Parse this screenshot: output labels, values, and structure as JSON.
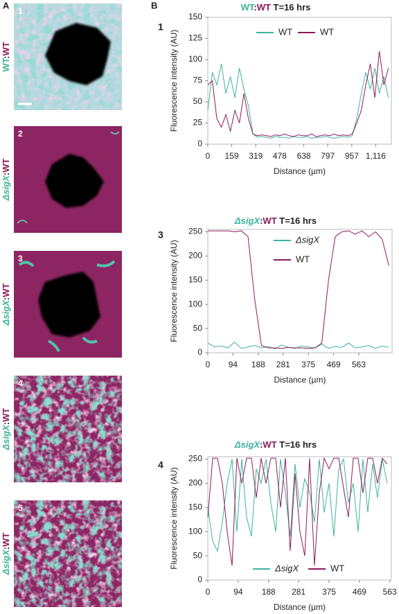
{
  "figure": {
    "panel_a_label": "A",
    "panel_b_label": "B",
    "images": [
      {
        "number": "1",
        "label": [
          {
            "text": "WT",
            "color": "#3bb39a"
          },
          {
            "text": ":",
            "color": "#222222"
          },
          {
            "text": "WT",
            "color": "#8b1a5a"
          }
        ]
      },
      {
        "number": "2",
        "label": [
          {
            "text": "ΔsigX",
            "color": "#3bb39a",
            "italic": true
          },
          {
            "text": ":",
            "color": "#222222"
          },
          {
            "text": "WT",
            "color": "#8b1a5a"
          }
        ]
      },
      {
        "number": "3",
        "label": [
          {
            "text": "ΔsigX",
            "color": "#3bb39a",
            "italic": true
          },
          {
            "text": ":",
            "color": "#222222"
          },
          {
            "text": "WT",
            "color": "#8b1a5a"
          }
        ]
      },
      {
        "number": "4",
        "label": [
          {
            "text": "ΔsigX",
            "color": "#3bb39a",
            "italic": true
          },
          {
            "text": ":",
            "color": "#222222"
          },
          {
            "text": "WT",
            "color": "#8b1a5a"
          }
        ]
      },
      {
        "number": "5",
        "label": [
          {
            "text": "ΔsigX",
            "color": "#3bb39a",
            "italic": true
          },
          {
            "text": ":",
            "color": "#222222"
          },
          {
            "text": "WT",
            "color": "#8b1a5a"
          }
        ]
      }
    ]
  },
  "chart_data": [
    {
      "type": "line",
      "panel_label": "1",
      "title": [
        {
          "text": "WT",
          "color": "#3bb39a"
        },
        {
          "text": ":",
          "color": "#222222"
        },
        {
          "text": "WT",
          "color": "#8b1a5a"
        },
        {
          "text": " T=16 hrs",
          "color": "#222222"
        }
      ],
      "x_label": "Distance (µm)",
      "y_label": "Fluorescence intensity (AU)",
      "legend": "top",
      "xlim": [
        0,
        1220
      ],
      "ylim": [
        0,
        150
      ],
      "xticks": [
        0,
        159,
        319,
        478,
        638,
        797,
        957,
        {
          "value": 1116,
          "label": "1,116"
        }
      ],
      "yticks": [
        0,
        25,
        50,
        75,
        100,
        125,
        150
      ],
      "x": [
        0,
        30,
        60,
        90,
        120,
        150,
        180,
        210,
        240,
        270,
        300,
        330,
        360,
        390,
        420,
        450,
        480,
        510,
        540,
        570,
        600,
        630,
        660,
        690,
        720,
        750,
        780,
        810,
        840,
        870,
        900,
        930,
        960,
        990,
        1020,
        1050,
        1080,
        1110,
        1140,
        1170,
        1200
      ],
      "series": [
        {
          "name": "WT",
          "color": "#3bb39a",
          "values": [
            40,
            85,
            70,
            95,
            60,
            80,
            55,
            90,
            65,
            45,
            12,
            8,
            9,
            8,
            7,
            9,
            8,
            8,
            7,
            9,
            8,
            8,
            9,
            7,
            8,
            8,
            9,
            8,
            7,
            8,
            9,
            8,
            10,
            30,
            60,
            85,
            65,
            90,
            60,
            80,
            55
          ]
        },
        {
          "name": "WT",
          "color": "#8b1a5a",
          "values": [
            70,
            75,
            30,
            20,
            35,
            15,
            40,
            25,
            60,
            30,
            12,
            10,
            11,
            10,
            9,
            11,
            10,
            12,
            10,
            9,
            11,
            10,
            10,
            12,
            9,
            10,
            11,
            10,
            12,
            10,
            11,
            10,
            12,
            25,
            40,
            70,
            95,
            55,
            110,
            70,
            90
          ]
        }
      ]
    },
    {
      "type": "line",
      "panel_label": "3",
      "title": [
        {
          "text": "ΔsigX",
          "color": "#3bb39a",
          "italic": true
        },
        {
          "text": ":",
          "color": "#222222"
        },
        {
          "text": "WT",
          "color": "#8b1a5a"
        },
        {
          "text": " T=16 hrs",
          "color": "#222222"
        }
      ],
      "x_label": "Distance (µm)",
      "y_label": "Fluorescence intensity (AU)",
      "legend": "top-stacked",
      "xlim": [
        0,
        687
      ],
      "ylim": [
        0,
        255
      ],
      "xticks": [
        0,
        94,
        188,
        281,
        375,
        469,
        563
      ],
      "yticks": [
        0,
        50,
        100,
        150,
        200,
        250
      ],
      "x": [
        0,
        25,
        50,
        75,
        100,
        125,
        150,
        175,
        200,
        225,
        250,
        275,
        300,
        325,
        350,
        375,
        400,
        425,
        450,
        475,
        500,
        525,
        550,
        575,
        600,
        625,
        650,
        675
      ],
      "series": [
        {
          "name": "ΔsigX",
          "italic": true,
          "color": "#3bb39a",
          "values": [
            20,
            12,
            14,
            10,
            22,
            9,
            12,
            15,
            10,
            13,
            8,
            16,
            11,
            9,
            14,
            12,
            10,
            18,
            9,
            13,
            11,
            20,
            10,
            12,
            15,
            9,
            14,
            11
          ]
        },
        {
          "name": "WT",
          "color": "#8b1a5a",
          "values": [
            252,
            252,
            252,
            252,
            250,
            252,
            240,
            110,
            15,
            10,
            10,
            9,
            11,
            10,
            10,
            9,
            10,
            20,
            150,
            240,
            250,
            252,
            245,
            252,
            240,
            250,
            235,
            180
          ]
        }
      ]
    },
    {
      "type": "line",
      "panel_label": "4",
      "title": [
        {
          "text": "ΔsigX",
          "color": "#3bb39a",
          "italic": true
        },
        {
          "text": ":",
          "color": "#222222"
        },
        {
          "text": "WT",
          "color": "#8b1a5a"
        },
        {
          "text": " T=16 hrs",
          "color": "#222222"
        }
      ],
      "x_label": "Distance (µm)",
      "y_label": "Fluorescence intensity (AU)",
      "legend": "bottom",
      "xlim": [
        0,
        568
      ],
      "ylim": [
        0,
        255
      ],
      "xticks": [
        0,
        94,
        188,
        281,
        375,
        469,
        563
      ],
      "yticks": [
        0,
        50,
        100,
        150,
        200,
        250
      ],
      "x": [
        0,
        15,
        30,
        45,
        60,
        75,
        90,
        105,
        120,
        135,
        150,
        165,
        180,
        195,
        210,
        225,
        240,
        255,
        270,
        285,
        300,
        315,
        330,
        345,
        360,
        375,
        390,
        405,
        420,
        435,
        450,
        465,
        480,
        495,
        510,
        525,
        540,
        555
      ],
      "series": [
        {
          "name": "ΔsigX",
          "italic": true,
          "color": "#3bb39a",
          "values": [
            150,
            80,
            60,
            120,
            200,
            250,
            100,
            250,
            130,
            90,
            230,
            200,
            250,
            160,
            100,
            250,
            180,
            90,
            240,
            150,
            210,
            180,
            120,
            250,
            140,
            200,
            90,
            230,
            250,
            160,
            200,
            100,
            250,
            140,
            240,
            170,
            250,
            200
          ]
        },
        {
          "name": "WT",
          "color": "#8b1a5a",
          "values": [
            130,
            252,
            252,
            200,
            100,
            30,
            252,
            200,
            252,
            252,
            170,
            252,
            200,
            252,
            252,
            150,
            252,
            60,
            220,
            100,
            50,
            252,
            30,
            180,
            252,
            230,
            252,
            252,
            190,
            130,
            252,
            252,
            180,
            252,
            252,
            200,
            252,
            240
          ]
        }
      ]
    }
  ]
}
